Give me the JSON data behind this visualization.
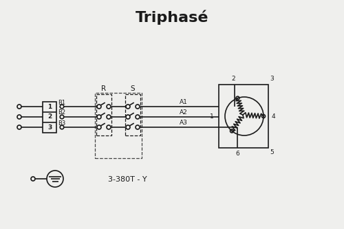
{
  "title": "Triphasé",
  "title_fontsize": 16,
  "title_fontweight": "bold",
  "bg_color": "#efefed",
  "line_color": "#1a1a1a",
  "dashed_color": "#444444",
  "label_3380T": "3-380T - Y",
  "label_R": "R",
  "label_S": "S",
  "figsize": [
    5.0,
    3.33
  ],
  "dpi": 100
}
